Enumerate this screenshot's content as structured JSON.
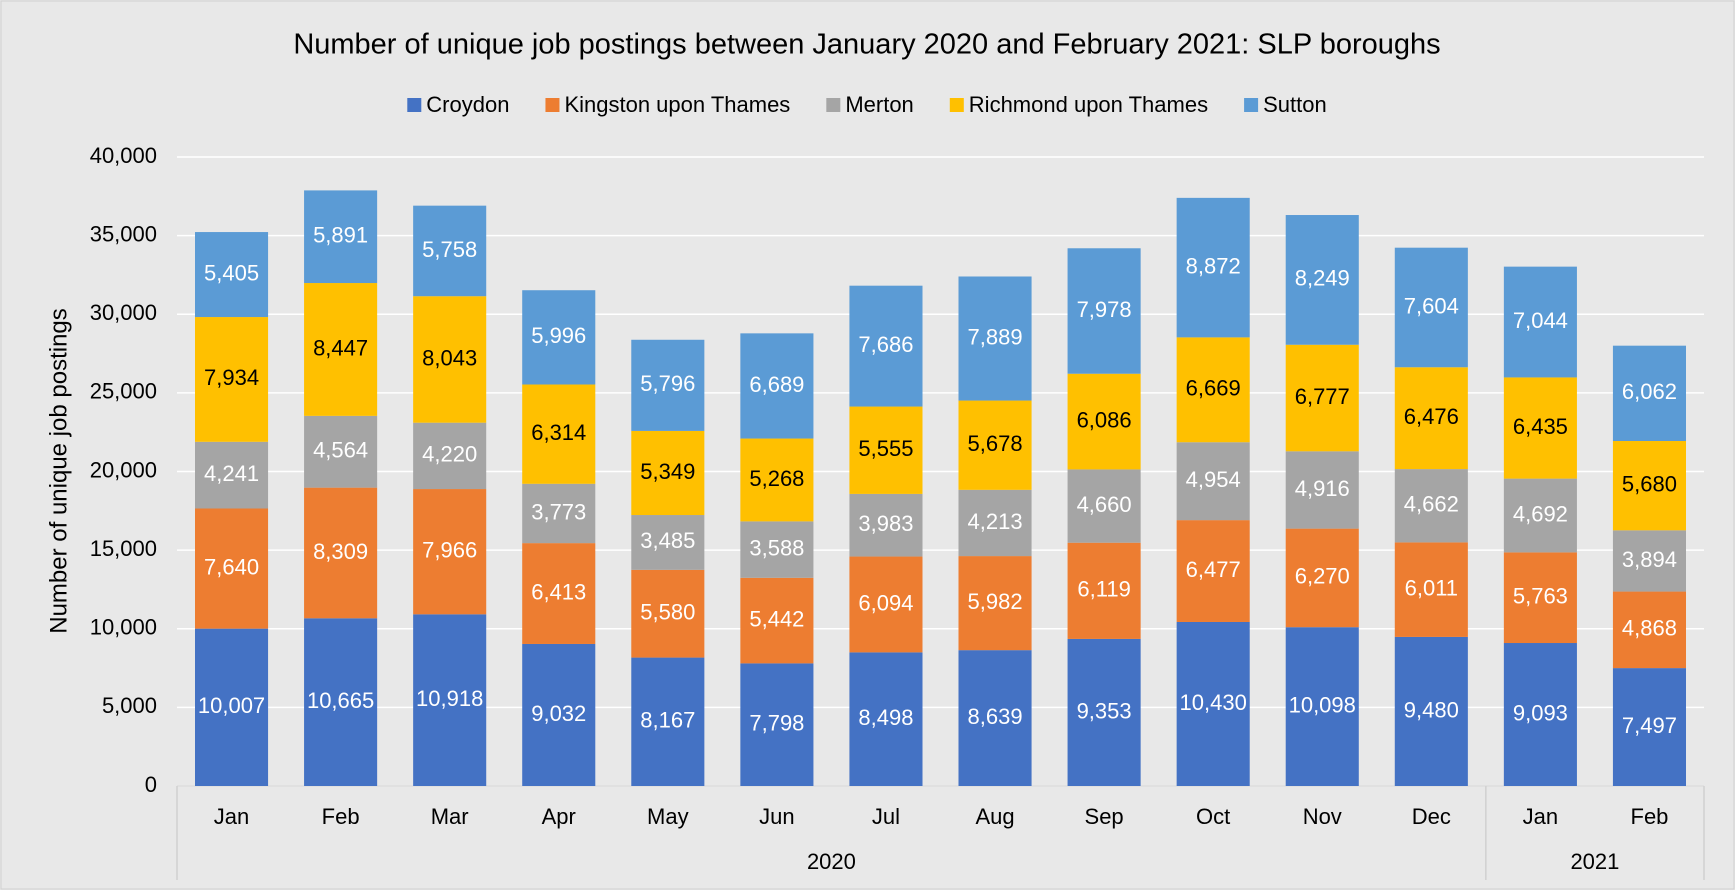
{
  "chart_data": {
    "type": "stacked_bar",
    "title": "Number of unique job postings between January 2020 and February 2021: SLP boroughs",
    "y_label": "Number of unique job postings",
    "categories": [
      "Jan",
      "Feb",
      "Mar",
      "Apr",
      "May",
      "Jun",
      "Jul",
      "Aug",
      "Sep",
      "Oct",
      "Nov",
      "Dec",
      "Jan",
      "Feb"
    ],
    "year_groups": [
      {
        "label": "2020",
        "size": 12
      },
      {
        "label": "2021",
        "size": 2
      }
    ],
    "series": [
      {
        "name": "Croydon",
        "color": "#4472c4",
        "label_color": "#ffffff",
        "values": [
          10007,
          10665,
          10918,
          9032,
          8167,
          7798,
          8498,
          8639,
          9353,
          10430,
          10098,
          9480,
          9093,
          7497
        ],
        "value_labels": [
          "10,007",
          "10,665",
          "10,918",
          "9,032",
          "8,167",
          "7,798",
          "8,498",
          "8,639",
          "9,353",
          "10,430",
          "10,098",
          "9,480",
          "9,093",
          "7,497"
        ]
      },
      {
        "name": "Kingston upon Thames",
        "color": "#ed7d31",
        "label_color": "#ffffff",
        "values": [
          7640,
          8309,
          7966,
          6413,
          5580,
          5442,
          6094,
          5982,
          6119,
          6477,
          6270,
          6011,
          5763,
          4868
        ],
        "value_labels": [
          "7,640",
          "8,309",
          "7,966",
          "6,413",
          "5,580",
          "5,442",
          "6,094",
          "5,982",
          "6,119",
          "6,477",
          "6,270",
          "6,011",
          "5,763",
          "4,868"
        ]
      },
      {
        "name": "Merton",
        "color": "#a5a5a5",
        "label_color": "#ffffff",
        "values": [
          4241,
          4564,
          4220,
          3773,
          3485,
          3588,
          3983,
          4213,
          4660,
          4954,
          4916,
          4662,
          4692,
          3894
        ],
        "value_labels": [
          "4,241",
          "4,564",
          "4,220",
          "3,773",
          "3,485",
          "3,588",
          "3,983",
          "4,213",
          "4,660",
          "4,954",
          "4,916",
          "4,662",
          "4,692",
          "3,894"
        ]
      },
      {
        "name": "Richmond upon Thames",
        "color": "#ffc000",
        "label_color": "#000000",
        "values": [
          7934,
          8447,
          8043,
          6314,
          5349,
          5268,
          5555,
          5678,
          6086,
          6669,
          6777,
          6476,
          6435,
          5680
        ],
        "value_labels": [
          "7,934",
          "8,447",
          "8,043",
          "6,314",
          "5,349",
          "5,268",
          "5,555",
          "5,678",
          "6,086",
          "6,669",
          "6,777",
          "6,476",
          "6,435",
          "5,680"
        ]
      },
      {
        "name": "Sutton",
        "color": "#5b9bd5",
        "label_color": "#ffffff",
        "values": [
          5405,
          5891,
          5758,
          5996,
          5796,
          6689,
          7686,
          7889,
          7978,
          8872,
          8249,
          7604,
          7044,
          6062
        ],
        "value_labels": [
          "5,405",
          "5,891",
          "5,758",
          "5,996",
          "5,796",
          "6,689",
          "7,686",
          "7,889",
          "7,978",
          "8,872",
          "8,249",
          "7,604",
          "7,044",
          "6,062"
        ]
      }
    ],
    "ylim": [
      0,
      40000
    ],
    "yticks": [
      0,
      {
        "value": 5000,
        "label": "5,000"
      },
      {
        "value": 10000,
        "label": "10,000"
      },
      {
        "value": 15000,
        "label": "15,000"
      },
      {
        "value": 20000,
        "label": "20,000"
      },
      {
        "value": 25000,
        "label": "25,000"
      },
      {
        "value": 30000,
        "label": "30,000"
      },
      {
        "value": 35000,
        "label": "35,000"
      },
      {
        "value": 40000,
        "label": "40,000"
      }
    ],
    "grid": true,
    "legend": "top"
  }
}
